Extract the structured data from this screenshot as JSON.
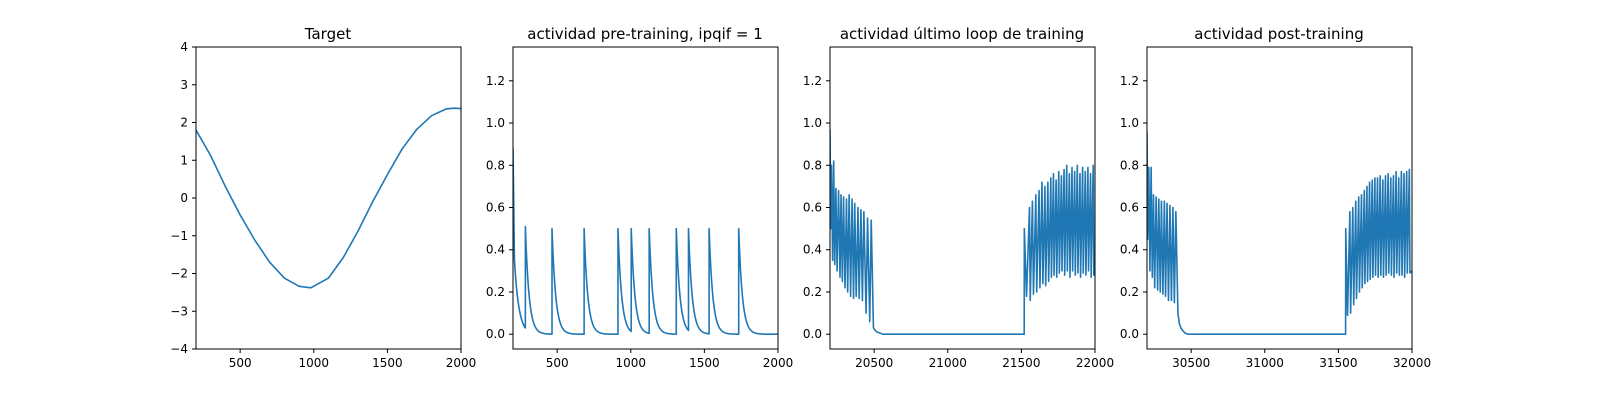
{
  "chart_data": [
    {
      "type": "line",
      "title": "Target",
      "xlim": [
        200,
        2000
      ],
      "ylim": [
        -4,
        4
      ],
      "xticks": [
        500,
        1000,
        1500,
        2000
      ],
      "yticks": [
        -4,
        -3,
        -2,
        -1,
        0,
        1,
        2,
        3,
        4
      ],
      "xtick_labels": [
        "500",
        "1000",
        "1500",
        "2000"
      ],
      "ytick_labels": [
        "−4",
        "−3",
        "−2",
        "−1",
        "0",
        "1",
        "2",
        "3",
        "4"
      ],
      "series": [
        {
          "color": "#1f77b4",
          "x": [
            200,
            300,
            400,
            500,
            600,
            700,
            800,
            900,
            980,
            1100,
            1200,
            1300,
            1400,
            1500,
            1600,
            1700,
            1800,
            1900,
            1950,
            2000
          ],
          "y": [
            1.8,
            1.12,
            0.3,
            -0.45,
            -1.12,
            -1.7,
            -2.12,
            -2.34,
            -2.38,
            -2.12,
            -1.58,
            -0.88,
            -0.1,
            0.62,
            1.3,
            1.82,
            2.18,
            2.36,
            2.38,
            2.37
          ]
        }
      ]
    },
    {
      "type": "line",
      "title": "actividad pre-training, ipqif = 1",
      "xlim": [
        200,
        2000
      ],
      "ylim": [
        -0.07,
        1.36
      ],
      "xticks": [
        500,
        1000,
        1500,
        2000
      ],
      "yticks": [
        0.0,
        0.2,
        0.4,
        0.6,
        0.8,
        1.0,
        1.2
      ],
      "xtick_labels": [
        "500",
        "1000",
        "1500",
        "2000"
      ],
      "ytick_labels": [
        "0.0",
        "0.2",
        "0.4",
        "0.6",
        "0.8",
        "1.0",
        "1.2"
      ],
      "series": [
        {
          "color": "#1f77b4",
          "initial": {
            "start_value": 0.88,
            "end_value": 0.35,
            "duration": 10,
            "decay_tau": 30
          },
          "spikes": [
            {
              "x": 284,
              "height": 0.51
            },
            {
              "x": 465,
              "height": 0.5
            },
            {
              "x": 683,
              "height": 0.5
            },
            {
              "x": 913,
              "height": 0.5
            },
            {
              "x": 1003,
              "height": 0.5
            },
            {
              "x": 1125,
              "height": 0.5
            },
            {
              "x": 1309,
              "height": 0.5
            },
            {
              "x": 1392,
              "height": 0.5
            },
            {
              "x": 1532,
              "height": 0.5
            },
            {
              "x": 1733,
              "height": 0.5
            }
          ],
          "decay_tau": 25,
          "baseline": 0.0
        }
      ]
    },
    {
      "type": "line",
      "title": "actividad último loop de training",
      "xlim": [
        20200,
        22000
      ],
      "ylim": [
        -0.07,
        1.36
      ],
      "xticks": [
        20500,
        21000,
        21500,
        22000
      ],
      "yticks": [
        0.0,
        0.2,
        0.4,
        0.6,
        0.8,
        1.0,
        1.2
      ],
      "xtick_labels": [
        "20500",
        "21000",
        "21500",
        "22000"
      ],
      "ytick_labels": [
        "0.0",
        "0.2",
        "0.4",
        "0.6",
        "0.8",
        "1.0",
        "1.2"
      ],
      "series": [
        {
          "color": "#1f77b4",
          "x": [
            20200,
            20205,
            20210,
            20218,
            20225,
            20232,
            20240,
            20248,
            20258,
            20268,
            20275,
            20284,
            20292,
            20302,
            20312,
            20320,
            20330,
            20340,
            20350,
            20360,
            20368,
            20378,
            20390,
            20398,
            20410,
            20420,
            20430,
            20445,
            20455,
            20470,
            20480,
            20495,
            20505,
            20520,
            20540,
            20560,
            20580,
            20620,
            20700,
            20900,
            21100,
            21300,
            21519,
            21520,
            21535,
            21555,
            21560,
            21575,
            21582,
            21598,
            21604,
            21620,
            21626,
            21640,
            21646,
            21660,
            21665,
            21680,
            21685,
            21700,
            21704,
            21718,
            21722,
            21736,
            21740,
            21754,
            21758,
            21772,
            21776,
            21790,
            21794,
            21808,
            21812,
            21826,
            21830,
            21844,
            21848,
            21862,
            21866,
            21880,
            21884,
            21898,
            21902,
            21916,
            21920,
            21934,
            21938,
            21952,
            21956,
            21970,
            21974,
            21988,
            21992,
            22000
          ],
          "y": [
            0.97,
            0.5,
            0.8,
            0.35,
            0.82,
            0.33,
            0.69,
            0.3,
            0.68,
            0.27,
            0.66,
            0.25,
            0.65,
            0.22,
            0.64,
            0.2,
            0.66,
            0.18,
            0.64,
            0.17,
            0.62,
            0.18,
            0.6,
            0.17,
            0.59,
            0.16,
            0.58,
            0.1,
            0.55,
            0.06,
            0.54,
            0.03,
            0.02,
            0.01,
            0.005,
            0.0,
            0.0,
            0.0,
            0.0,
            0.0,
            0.0,
            0.0,
            0.0,
            0.5,
            0.18,
            0.6,
            0.16,
            0.63,
            0.19,
            0.66,
            0.2,
            0.68,
            0.22,
            0.72,
            0.24,
            0.7,
            0.23,
            0.72,
            0.25,
            0.74,
            0.27,
            0.76,
            0.28,
            0.73,
            0.27,
            0.77,
            0.29,
            0.75,
            0.3,
            0.78,
            0.28,
            0.8,
            0.3,
            0.76,
            0.27,
            0.79,
            0.3,
            0.77,
            0.28,
            0.8,
            0.29,
            0.76,
            0.27,
            0.79,
            0.29,
            0.77,
            0.28,
            0.79,
            0.3,
            0.76,
            0.27,
            0.8,
            0.28,
            0.28
          ]
        }
      ]
    },
    {
      "type": "line",
      "title": "actividad post-training",
      "xlim": [
        30200,
        32000
      ],
      "ylim": [
        -0.07,
        1.36
      ],
      "xticks": [
        30500,
        31000,
        31500,
        32000
      ],
      "yticks": [
        0.0,
        0.2,
        0.4,
        0.6,
        0.8,
        1.0,
        1.2
      ],
      "xtick_labels": [
        "30500",
        "31000",
        "31500",
        "32000"
      ],
      "ytick_labels": [
        "0.0",
        "0.2",
        "0.4",
        "0.6",
        "0.8",
        "1.0",
        "1.2"
      ],
      "series": [
        {
          "color": "#1f77b4",
          "x": [
            30200,
            30205,
            30212,
            30220,
            30228,
            30236,
            30244,
            30252,
            30262,
            30272,
            30280,
            30290,
            30298,
            30308,
            30318,
            30326,
            30336,
            30346,
            30356,
            30366,
            30376,
            30386,
            30396,
            30410,
            30420,
            30430,
            30445,
            30460,
            30480,
            30500,
            30540,
            30600,
            30800,
            31000,
            31200,
            31400,
            31549,
            31550,
            31562,
            31578,
            31583,
            31598,
            31604,
            31618,
            31623,
            31638,
            31643,
            31657,
            31662,
            31676,
            31680,
            31694,
            31698,
            31712,
            31716,
            31730,
            31734,
            31748,
            31752,
            31766,
            31770,
            31784,
            31788,
            31802,
            31806,
            31820,
            31824,
            31838,
            31842,
            31856,
            31860,
            31874,
            31878,
            31892,
            31896,
            31910,
            31914,
            31928,
            31932,
            31946,
            31950,
            31964,
            31968,
            31982,
            31986,
            32000
          ],
          "y": [
            0.96,
            0.45,
            0.79,
            0.3,
            0.79,
            0.27,
            0.66,
            0.22,
            0.65,
            0.21,
            0.64,
            0.2,
            0.63,
            0.19,
            0.63,
            0.18,
            0.62,
            0.16,
            0.61,
            0.16,
            0.6,
            0.15,
            0.58,
            0.1,
            0.05,
            0.03,
            0.015,
            0.005,
            0.0,
            0.0,
            0.0,
            0.0,
            0.0,
            0.0,
            0.0,
            0.0,
            0.0,
            0.5,
            0.09,
            0.58,
            0.1,
            0.6,
            0.14,
            0.63,
            0.17,
            0.65,
            0.2,
            0.66,
            0.22,
            0.68,
            0.24,
            0.7,
            0.25,
            0.72,
            0.26,
            0.73,
            0.27,
            0.74,
            0.28,
            0.74,
            0.27,
            0.75,
            0.28,
            0.73,
            0.27,
            0.75,
            0.28,
            0.76,
            0.29,
            0.74,
            0.28,
            0.75,
            0.27,
            0.77,
            0.29,
            0.74,
            0.28,
            0.77,
            0.28,
            0.76,
            0.27,
            0.77,
            0.29,
            0.78,
            0.29,
            0.3
          ]
        }
      ]
    }
  ]
}
